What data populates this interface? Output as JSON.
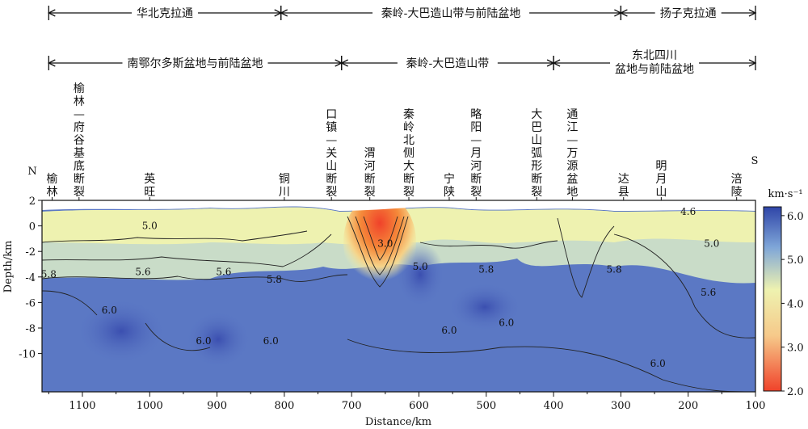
{
  "chart_data": {
    "type": "heatmap",
    "x_axis": {
      "label": "Distance/km",
      "range": [
        1160,
        100
      ],
      "ticks": [
        1100,
        1000,
        900,
        800,
        700,
        600,
        500,
        400,
        300,
        200,
        100
      ]
    },
    "y_axis": {
      "label": "Depth/km",
      "range": [
        2,
        -13
      ],
      "ticks": [
        2,
        0,
        -2,
        -4,
        -6,
        -8,
        -10
      ]
    },
    "colorbar": {
      "label": "km·s⁻¹",
      "range": [
        2.0,
        6.2
      ],
      "ticks": [
        "6.0",
        "5.0",
        "4.0",
        "3.0",
        "2.0"
      ],
      "tick_values": [
        6.0,
        5.0,
        4.0,
        3.0,
        2.0
      ],
      "colors": [
        "#2f45a8",
        "#7fa6d8",
        "#eef2b0",
        "#f6c98a",
        "#f0422a"
      ]
    },
    "direction": {
      "north": "N",
      "south": "S"
    },
    "tectonic_units_top": [
      {
        "name": "华北克拉通",
        "from": 1150,
        "to": 805
      },
      {
        "name": "秦岭-大巴造山带与前陆盆地",
        "from": 805,
        "to": 300
      },
      {
        "name": "扬子克拉通",
        "from": 300,
        "to": 100
      }
    ],
    "tectonic_units_second": [
      {
        "name": "南鄂尔多斯盆地与前陆盆地",
        "from": 1150,
        "to": 715
      },
      {
        "name": "秦岭-大巴造山带",
        "from": 715,
        "to": 400
      },
      {
        "name": "东北四川",
        "name_line2": "盆地与前陆盆地",
        "from": 400,
        "to": 100
      }
    ],
    "locations": [
      {
        "name": "榆林",
        "x": 1145
      },
      {
        "name": "榆林—府谷基底断裂",
        "x": 1105
      },
      {
        "name": "英旺",
        "x": 1000
      },
      {
        "name": "铜川",
        "x": 800
      },
      {
        "name": "口镇—关山断裂",
        "x": 730
      },
      {
        "name": "渭河断裂",
        "x": 673
      },
      {
        "name": "秦岭北侧大断裂",
        "x": 615
      },
      {
        "name": "宁陕",
        "x": 555
      },
      {
        "name": "略阳—月河断裂",
        "x": 515
      },
      {
        "name": "大巴山弧形断裂",
        "x": 425
      },
      {
        "name": "通江—万源盆地",
        "x": 372
      },
      {
        "name": "达县",
        "x": 296
      },
      {
        "name": "明月山",
        "x": 240
      },
      {
        "name": "涪陵",
        "x": 128
      }
    ],
    "contour_labels": [
      {
        "text": "5.0",
        "x": 1000,
        "y": 0.0
      },
      {
        "text": "5.6",
        "x": 1010,
        "y": -3.6
      },
      {
        "text": "5.8",
        "x": 1150,
        "y": -3.8
      },
      {
        "text": "6.0",
        "x": 1060,
        "y": -6.6
      },
      {
        "text": "6.0",
        "x": 920,
        "y": -9.0
      },
      {
        "text": "5.6",
        "x": 890,
        "y": -3.6
      },
      {
        "text": "5.8",
        "x": 815,
        "y": -4.2
      },
      {
        "text": "6.0",
        "x": 820,
        "y": -9.0
      },
      {
        "text": "3.0",
        "x": 650,
        "y": -1.4
      },
      {
        "text": "5.0",
        "x": 598,
        "y": -3.2
      },
      {
        "text": "5.8",
        "x": 500,
        "y": -3.4
      },
      {
        "text": "6.0",
        "x": 555,
        "y": -8.2
      },
      {
        "text": "6.0",
        "x": 470,
        "y": -7.6
      },
      {
        "text": "5.8",
        "x": 310,
        "y": -3.4
      },
      {
        "text": "4.6",
        "x": 200,
        "y": 1.1
      },
      {
        "text": "5.0",
        "x": 165,
        "y": -1.4
      },
      {
        "text": "5.6",
        "x": 170,
        "y": -5.2
      },
      {
        "text": "6.0",
        "x": 245,
        "y": -10.8
      }
    ],
    "anomalies": [
      {
        "type": "low_velocity",
        "center": [
          650,
          -0.7
        ],
        "min_velocity": 2.0
      },
      {
        "type": "high_velocity",
        "center": [
          1020,
          -10.5
        ],
        "velocity": 6.1
      },
      {
        "type": "high_velocity",
        "center": [
          600,
          -6.0
        ],
        "velocity": 6.1
      }
    ]
  }
}
